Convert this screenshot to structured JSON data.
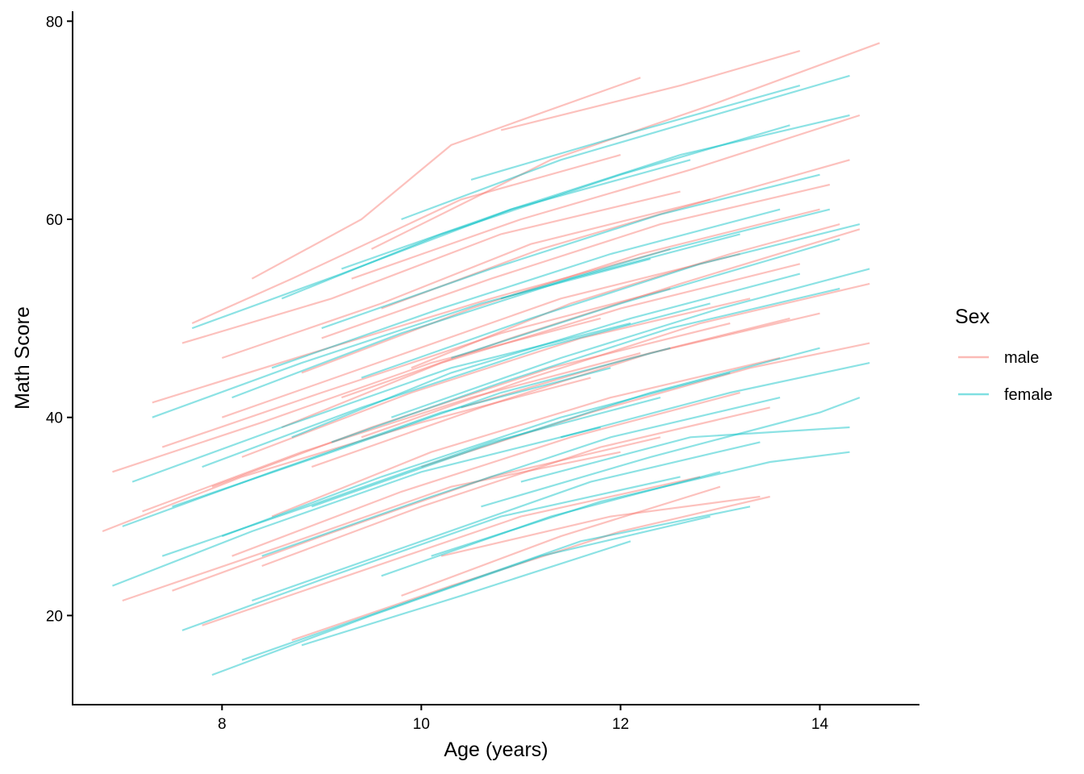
{
  "chart_data": {
    "type": "line",
    "title": "",
    "xlabel": "Age (years)",
    "ylabel": "Math Score",
    "xlim": [
      6.5,
      15.0
    ],
    "ylim": [
      11.0,
      81.0
    ],
    "xticks": [
      8,
      10,
      12,
      14
    ],
    "yticks": [
      20,
      40,
      60,
      80
    ],
    "grid": false,
    "legend": {
      "title": "Sex",
      "position": "right"
    },
    "series": [
      {
        "name": "male",
        "color": "#F8766D",
        "lines": [
          {
            "x": [
              7.7,
              8.7,
              10.4,
              12.0
            ],
            "y": [
              49.5,
              54.0,
              62.0,
              66.5
            ]
          },
          {
            "x": [
              8.3,
              9.4,
              10.3,
              12.2
            ],
            "y": [
              54.0,
              60.0,
              67.5,
              74.3
            ]
          },
          {
            "x": [
              9.5,
              11.3,
              12.9,
              14.6
            ],
            "y": [
              57.0,
              66.0,
              71.5,
              77.8
            ]
          },
          {
            "x": [
              10.8,
              12.6,
              13.8
            ],
            "y": [
              69.0,
              73.5,
              77.0
            ]
          },
          {
            "x": [
              7.6,
              9.1,
              10.8,
              12.6
            ],
            "y": [
              47.5,
              52.0,
              58.5,
              62.8
            ]
          },
          {
            "x": [
              8.0,
              9.6,
              11.1,
              12.9
            ],
            "y": [
              46.0,
              51.5,
              57.5,
              62.0
            ]
          },
          {
            "x": [
              7.3,
              8.9,
              10.7,
              12.5
            ],
            "y": [
              41.5,
              46.5,
              52.0,
              57.0
            ]
          },
          {
            "x": [
              6.9,
              8.4,
              10.1,
              11.8
            ],
            "y": [
              34.5,
              39.5,
              45.5,
              50.0
            ]
          },
          {
            "x": [
              6.8,
              8.2,
              10.0,
              11.7
            ],
            "y": [
              28.5,
              34.0,
              39.5,
              44.0
            ]
          },
          {
            "x": [
              7.0,
              8.6,
              10.3,
              12.0
            ],
            "y": [
              21.5,
              27.0,
              33.0,
              36.5
            ]
          },
          {
            "x": [
              7.5,
              9.0,
              10.7,
              12.4
            ],
            "y": [
              22.5,
              28.0,
              34.0,
              38.0
            ]
          },
          {
            "x": [
              7.8,
              9.4,
              11.0,
              12.8
            ],
            "y": [
              19.0,
              24.5,
              30.0,
              34.0
            ]
          },
          {
            "x": [
              8.7,
              10.3,
              12.0,
              13.5
            ],
            "y": [
              17.5,
              23.0,
              28.5,
              32.0
            ]
          },
          {
            "x": [
              9.8,
              11.4,
              13.0
            ],
            "y": [
              22.0,
              28.0,
              33.0
            ]
          },
          {
            "x": [
              10.2,
              11.9,
              13.4
            ],
            "y": [
              26.0,
              30.0,
              32.0
            ]
          },
          {
            "x": [
              8.5,
              10.1,
              11.9,
              13.6
            ],
            "y": [
              30.0,
              36.5,
              42.0,
              46.0
            ]
          },
          {
            "x": [
              8.9,
              10.6,
              12.3,
              14.0
            ],
            "y": [
              35.0,
              41.0,
              46.5,
              50.5
            ]
          },
          {
            "x": [
              9.2,
              10.9,
              12.6,
              14.4
            ],
            "y": [
              42.0,
              48.0,
              53.5,
              59.0
            ]
          },
          {
            "x": [
              9.0,
              10.7,
              12.4,
              14.1
            ],
            "y": [
              48.0,
              54.0,
              59.5,
              63.5
            ]
          },
          {
            "x": [
              8.6,
              10.2,
              12.0,
              13.8
            ],
            "y": [
              39.0,
              45.5,
              51.0,
              55.5
            ]
          },
          {
            "x": [
              7.9,
              9.5,
              11.3,
              13.1
            ],
            "y": [
              33.0,
              39.0,
              45.0,
              49.5
            ]
          },
          {
            "x": [
              8.1,
              9.8,
              11.5,
              13.2
            ],
            "y": [
              26.0,
              32.5,
              38.0,
              42.5
            ]
          },
          {
            "x": [
              9.4,
              11.1,
              12.8,
              14.5
            ],
            "y": [
              38.0,
              44.0,
              49.5,
              53.5
            ]
          },
          {
            "x": [
              8.8,
              10.5,
              12.2,
              14.0
            ],
            "y": [
              44.5,
              51.0,
              56.5,
              61.0
            ]
          },
          {
            "x": [
              7.4,
              9.0,
              10.8,
              12.5
            ],
            "y": [
              37.0,
              42.5,
              48.5,
              53.0
            ]
          },
          {
            "x": [
              9.6,
              11.2,
              12.9,
              14.3
            ],
            "y": [
              51.0,
              57.0,
              62.0,
              66.0
            ]
          },
          {
            "x": [
              9.9,
              11.5,
              13.1,
              14.2
            ],
            "y": [
              45.0,
              51.5,
              56.5,
              59.5
            ]
          },
          {
            "x": [
              8.4,
              10.0,
              11.8,
              13.5
            ],
            "y": [
              25.0,
              31.0,
              37.0,
              41.0
            ]
          },
          {
            "x": [
              10.4,
              12.1,
              13.7
            ],
            "y": [
              41.0,
              46.0,
              50.0
            ]
          },
          {
            "x": [
              8.0,
              9.7,
              11.4,
              13.2
            ],
            "y": [
              40.0,
              46.0,
              52.0,
              56.5
            ]
          },
          {
            "x": [
              7.2,
              8.8,
              10.5,
              12.2
            ],
            "y": [
              30.5,
              36.5,
              42.0,
              46.5
            ]
          },
          {
            "x": [
              9.3,
              11.0,
              12.7,
              14.4
            ],
            "y": [
              54.0,
              60.0,
              65.0,
              70.5
            ]
          },
          {
            "x": [
              10.0,
              11.7,
              13.3,
              14.5
            ],
            "y": [
              35.0,
              40.5,
              45.0,
              47.5
            ]
          },
          {
            "x": [
              8.2,
              9.9,
              11.6,
              13.3
            ],
            "y": [
              36.0,
              42.5,
              48.0,
              52.0
            ]
          }
        ]
      },
      {
        "name": "female",
        "color": "#00BFC4",
        "lines": [
          {
            "x": [
              7.7,
              9.2,
              10.9,
              12.7
            ],
            "y": [
              49.0,
              54.5,
              61.0,
              66.0
            ]
          },
          {
            "x": [
              8.6,
              10.2,
              12.0,
              13.7
            ],
            "y": [
              52.0,
              58.5,
              64.5,
              69.5
            ]
          },
          {
            "x": [
              9.8,
              11.4,
              13.1,
              14.3
            ],
            "y": [
              60.0,
              66.0,
              71.0,
              74.5
            ]
          },
          {
            "x": [
              10.5,
              12.2,
              13.8
            ],
            "y": [
              64.0,
              69.0,
              73.5
            ]
          },
          {
            "x": [
              7.3,
              8.8,
              10.6,
              12.3
            ],
            "y": [
              40.0,
              45.5,
              51.5,
              56.0
            ]
          },
          {
            "x": [
              7.1,
              8.6,
              10.3,
              12.1
            ],
            "y": [
              33.5,
              39.0,
              45.0,
              49.5
            ]
          },
          {
            "x": [
              7.0,
              8.5,
              10.2,
              11.9
            ],
            "y": [
              29.0,
              34.5,
              40.5,
              45.0
            ]
          },
          {
            "x": [
              6.9,
              8.3,
              10.0,
              11.8
            ],
            "y": [
              23.0,
              28.5,
              34.5,
              39.0
            ]
          },
          {
            "x": [
              7.6,
              9.1,
              10.8,
              12.6
            ],
            "y": [
              18.5,
              24.0,
              30.0,
              34.0
            ]
          },
          {
            "x": [
              7.9,
              9.5,
              11.2,
              12.9
            ],
            "y": [
              14.0,
              20.0,
              26.0,
              30.0
            ]
          },
          {
            "x": [
              8.2,
              9.9,
              11.6,
              13.3
            ],
            "y": [
              15.5,
              21.5,
              27.5,
              31.0
            ]
          },
          {
            "x": [
              8.8,
              10.4,
              12.1
            ],
            "y": [
              17.0,
              22.0,
              27.5
            ]
          },
          {
            "x": [
              9.6,
              11.3,
              13.0
            ],
            "y": [
              24.0,
              30.0,
              34.5
            ]
          },
          {
            "x": [
              10.1,
              11.8,
              13.5,
              14.3
            ],
            "y": [
              26.0,
              31.5,
              35.5,
              36.5
            ]
          },
          {
            "x": [
              10.6,
              12.3,
              14.0,
              14.4
            ],
            "y": [
              31.0,
              36.0,
              40.5,
              42.0
            ]
          },
          {
            "x": [
              11.0,
              12.7,
              14.3
            ],
            "y": [
              33.5,
              38.0,
              39.0
            ]
          },
          {
            "x": [
              11.4,
              13.1,
              14.5
            ],
            "y": [
              38.0,
              42.5,
              45.5
            ]
          },
          {
            "x": [
              8.4,
              10.1,
              11.9,
              13.6
            ],
            "y": [
              26.0,
              32.0,
              38.0,
              42.0
            ]
          },
          {
            "x": [
              8.9,
              10.6,
              12.3,
              14.0
            ],
            "y": [
              31.0,
              37.0,
              42.5,
              47.0
            ]
          },
          {
            "x": [
              9.1,
              10.8,
              12.5,
              14.2
            ],
            "y": [
              37.5,
              43.5,
              49.0,
              53.0
            ]
          },
          {
            "x": [
              9.4,
              11.1,
              12.8,
              14.4
            ],
            "y": [
              44.0,
              50.0,
              55.5,
              59.5
            ]
          },
          {
            "x": [
              9.0,
              10.7,
              12.4,
              14.0
            ],
            "y": [
              49.0,
              55.0,
              60.5,
              64.5
            ]
          },
          {
            "x": [
              8.1,
              9.8,
              11.5,
              13.2
            ],
            "y": [
              42.0,
              48.5,
              54.0,
              58.5
            ]
          },
          {
            "x": [
              7.8,
              9.4,
              11.2,
              12.9
            ],
            "y": [
              35.0,
              41.0,
              47.0,
              51.5
            ]
          },
          {
            "x": [
              8.7,
              10.3,
              12.1,
              13.8
            ],
            "y": [
              38.0,
              44.5,
              50.0,
              54.5
            ]
          },
          {
            "x": [
              9.7,
              11.4,
              13.0,
              14.5
            ],
            "y": [
              40.0,
              46.0,
              51.0,
              55.0
            ]
          },
          {
            "x": [
              10.3,
              12.0,
              13.7,
              14.2
            ],
            "y": [
              46.0,
              51.5,
              56.5,
              58.0
            ]
          },
          {
            "x": [
              8.0,
              9.6,
              11.4,
              13.1
            ],
            "y": [
              28.0,
              34.0,
              40.0,
              44.5
            ]
          },
          {
            "x": [
              8.5,
              10.2,
              11.9,
              13.6
            ],
            "y": [
              45.0,
              51.0,
              56.5,
              61.0
            ]
          },
          {
            "x": [
              9.2,
              10.9,
              12.6,
              14.3
            ],
            "y": [
              55.0,
              61.0,
              66.5,
              70.5
            ]
          },
          {
            "x": [
              7.4,
              9.0,
              10.7,
              12.4
            ],
            "y": [
              26.0,
              31.5,
              37.5,
              42.0
            ]
          },
          {
            "x": [
              7.5,
              9.1,
              10.8,
              12.5
            ],
            "y": [
              31.0,
              36.5,
              42.5,
              47.0
            ]
          },
          {
            "x": [
              10.8,
              12.5,
              14.1
            ],
            "y": [
              52.0,
              57.0,
              61.0
            ]
          },
          {
            "x": [
              8.3,
              10.0,
              11.7,
              13.4
            ],
            "y": [
              21.5,
              27.5,
              33.5,
              37.5
            ]
          }
        ]
      }
    ]
  }
}
